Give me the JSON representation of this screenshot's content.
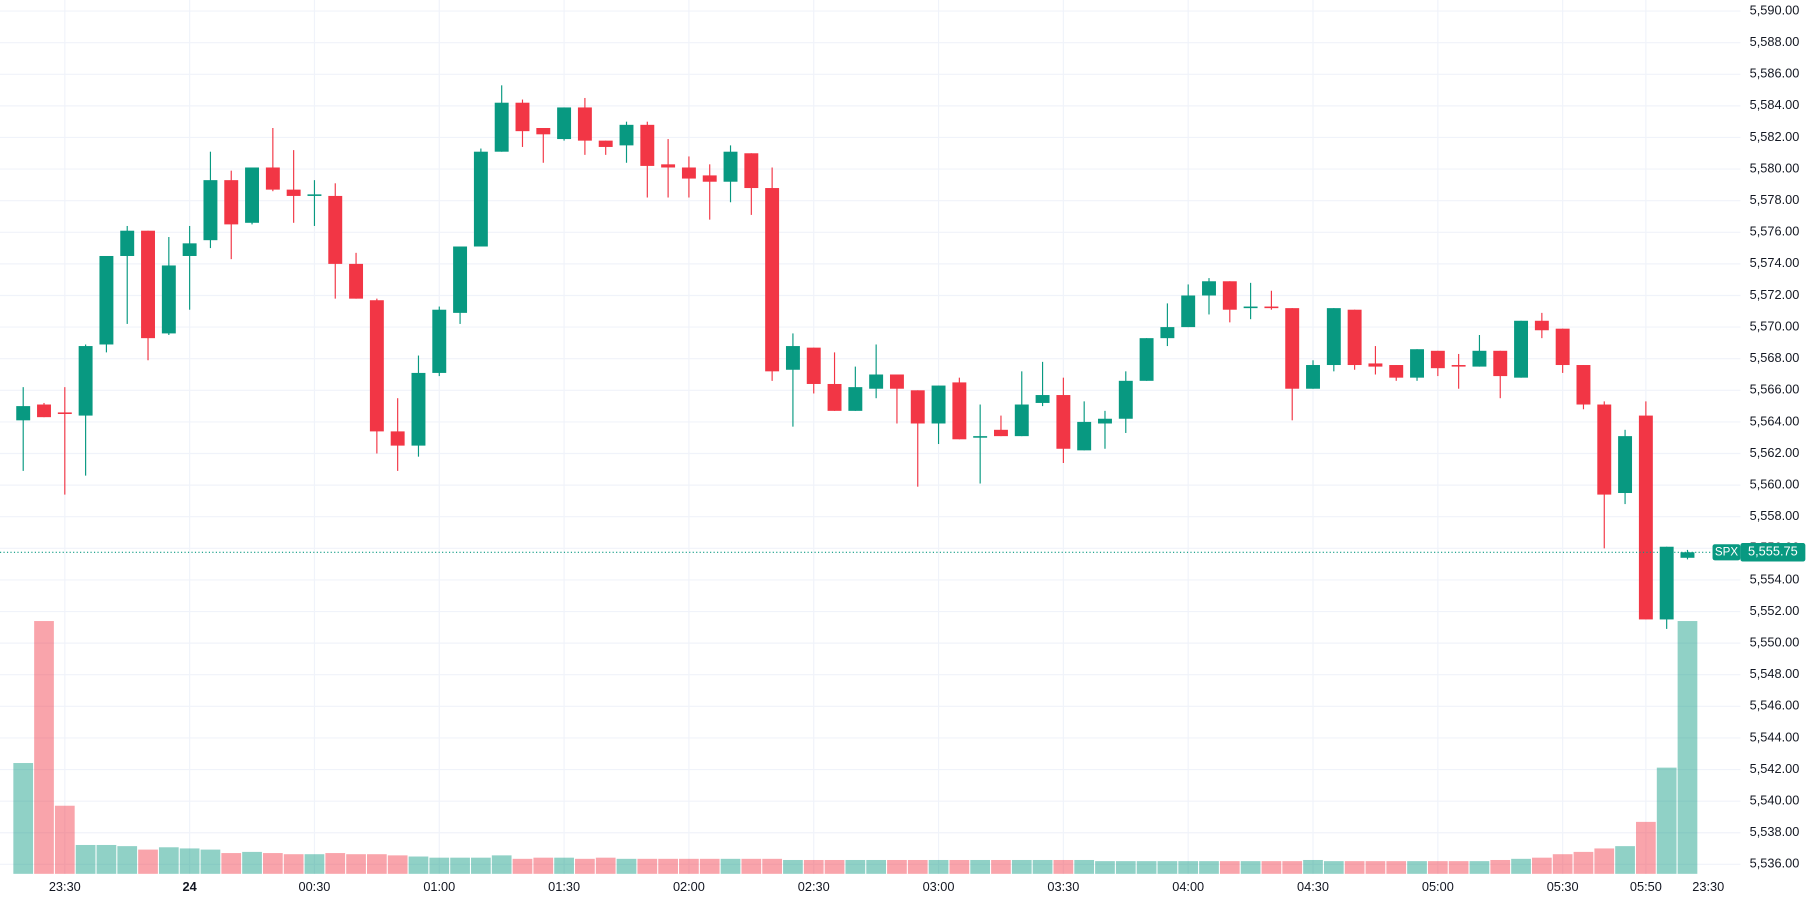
{
  "chart_data": {
    "type": "candlestick",
    "symbol": "SPX",
    "categories": [
      null,
      null,
      "23:30",
      null,
      null,
      null,
      null,
      null,
      "24",
      null,
      null,
      null,
      null,
      null,
      "00:30",
      null,
      null,
      null,
      null,
      null,
      "01:00",
      null,
      null,
      null,
      null,
      null,
      "01:30",
      null,
      null,
      null,
      null,
      null,
      "02:00",
      null,
      null,
      null,
      null,
      null,
      "02:30",
      null,
      null,
      null,
      null,
      null,
      "03:00",
      null,
      null,
      null,
      null,
      null,
      "03:30",
      null,
      null,
      null,
      null,
      null,
      "04:00",
      null,
      null,
      null,
      null,
      null,
      "04:30",
      null,
      null,
      null,
      null,
      null,
      "05:00",
      null,
      null,
      null,
      null,
      null,
      "05:30",
      null,
      null,
      null,
      "05:50",
      null,
      null
    ],
    "next_session_label": "23:30",
    "open": [
      5564.1,
      5565.1,
      5564.6,
      5564.4,
      5568.9,
      5574.5,
      5576.1,
      5569.6,
      5574.5,
      5575.5,
      5579.3,
      5576.6,
      5580.1,
      5578.7,
      5578.3,
      5578.3,
      5574.0,
      5571.7,
      5563.4,
      5562.5,
      5567.1,
      5570.9,
      5575.1,
      5581.1,
      5584.2,
      5582.6,
      5581.9,
      5583.9,
      5581.8,
      5581.5,
      5582.8,
      5580.3,
      5580.1,
      5579.6,
      5579.2,
      5581.0,
      5578.8,
      5567.3,
      5568.7,
      5566.4,
      5564.7,
      5566.1,
      5567.0,
      5566.0,
      5563.9,
      5566.5,
      5563.0,
      5563.5,
      5563.1,
      5565.2,
      5565.7,
      5562.2,
      5563.9,
      5564.2,
      5566.6,
      5569.3,
      5570.0,
      5572.0,
      5572.9,
      5571.2,
      5571.3,
      5571.2,
      5566.1,
      5567.6,
      5571.1,
      5567.7,
      5567.6,
      5566.8,
      5568.5,
      5567.6,
      5567.5,
      5568.5,
      5566.8,
      5570.4,
      5569.9,
      5567.6,
      5565.1,
      5559.5,
      5564.4,
      5551.5,
      5555.4
    ],
    "high": [
      5566.2,
      5565.2,
      5566.2,
      5568.9,
      5574.5,
      5576.4,
      5576.1,
      5575.7,
      5576.4,
      5581.1,
      5579.9,
      5580.1,
      5582.6,
      5581.2,
      5579.3,
      5579.1,
      5574.7,
      5571.8,
      5565.5,
      5568.2,
      5571.3,
      5575.1,
      5581.3,
      5585.3,
      5584.4,
      5582.6,
      5583.9,
      5584.5,
      5581.8,
      5583.0,
      5583.0,
      5581.9,
      5580.8,
      5580.3,
      5581.5,
      5581.0,
      5580.1,
      5569.6,
      5568.7,
      5568.4,
      5567.5,
      5568.9,
      5567.0,
      5566.0,
      5566.3,
      5566.8,
      5565.1,
      5564.4,
      5567.2,
      5567.8,
      5566.8,
      5565.3,
      5564.7,
      5567.2,
      5569.3,
      5571.5,
      5572.7,
      5573.1,
      5572.9,
      5572.8,
      5572.3,
      5571.2,
      5567.9,
      5571.2,
      5571.1,
      5568.8,
      5567.6,
      5568.6,
      5568.5,
      5568.3,
      5569.5,
      5568.5,
      5570.4,
      5570.9,
      5569.9,
      5567.6,
      5565.3,
      5563.5,
      5565.3,
      5556.1,
      5555.9
    ],
    "low": [
      5560.9,
      5564.3,
      5559.4,
      5560.6,
      5568.4,
      5570.2,
      5567.9,
      5569.5,
      5571.1,
      5575.0,
      5574.3,
      5576.5,
      5578.6,
      5576.6,
      5576.4,
      5571.8,
      5571.8,
      5562.0,
      5560.9,
      5561.8,
      5566.9,
      5570.2,
      5575.1,
      5581.1,
      5581.4,
      5580.4,
      5581.8,
      5580.9,
      5580.9,
      5580.4,
      5578.2,
      5578.2,
      5578.2,
      5576.8,
      5577.9,
      5577.1,
      5566.6,
      5563.7,
      5565.8,
      5564.7,
      5564.7,
      5565.5,
      5563.9,
      5559.9,
      5562.6,
      5562.9,
      5560.1,
      5563.1,
      5563.1,
      5565.0,
      5561.4,
      5562.2,
      5562.3,
      5563.3,
      5566.6,
      5568.8,
      5570.0,
      5570.8,
      5570.3,
      5570.5,
      5571.1,
      5564.1,
      5566.1,
      5567.2,
      5567.3,
      5567.0,
      5566.6,
      5566.6,
      5566.9,
      5566.1,
      5567.5,
      5565.5,
      5566.8,
      5569.3,
      5567.1,
      5564.8,
      5556.0,
      5558.8,
      5551.5,
      5550.9,
      5555.3
    ],
    "close": [
      5565.0,
      5564.3,
      5564.5,
      5568.8,
      5574.5,
      5576.1,
      5569.3,
      5573.9,
      5575.3,
      5579.3,
      5576.5,
      5580.1,
      5578.7,
      5578.3,
      5578.4,
      5574.0,
      5571.8,
      5563.4,
      5562.5,
      5567.1,
      5571.1,
      5575.1,
      5581.1,
      5584.2,
      5582.4,
      5582.2,
      5583.9,
      5581.8,
      5581.4,
      5582.8,
      5580.2,
      5580.1,
      5579.4,
      5579.2,
      5581.1,
      5578.8,
      5567.2,
      5568.8,
      5566.4,
      5564.7,
      5566.2,
      5567.0,
      5566.1,
      5563.9,
      5566.3,
      5562.9,
      5563.1,
      5563.1,
      5565.1,
      5565.7,
      5562.3,
      5564.0,
      5564.2,
      5566.6,
      5569.3,
      5570.0,
      5572.0,
      5572.9,
      5571.1,
      5571.3,
      5571.2,
      5566.1,
      5567.6,
      5571.2,
      5567.6,
      5567.5,
      5566.8,
      5568.6,
      5567.4,
      5567.5,
      5568.5,
      5566.9,
      5570.4,
      5569.8,
      5567.6,
      5565.1,
      5559.4,
      5563.1,
      5551.5,
      5556.1,
      5555.75
    ],
    "volume": [
      96,
      219,
      59,
      25,
      25,
      24,
      21,
      23,
      22,
      21,
      18,
      19,
      18,
      17,
      17,
      18,
      17,
      17,
      16,
      15,
      14,
      14,
      14,
      16,
      13,
      14,
      14,
      13,
      14,
      13,
      13,
      13,
      13,
      13,
      13,
      13,
      13,
      12,
      12,
      12,
      12,
      12,
      12,
      12,
      12,
      12,
      12,
      12,
      12,
      12,
      12,
      12,
      11,
      11,
      11,
      11,
      11,
      11,
      11,
      11,
      11,
      11,
      12,
      11,
      11,
      11,
      11,
      11,
      11,
      11,
      11,
      12,
      13,
      14,
      17,
      19,
      22,
      24,
      45,
      92,
      219
    ],
    "up_color": "#089981",
    "down_color": "#f23645",
    "last_price": {
      "value": 5555.75,
      "label": "5,555.75"
    },
    "ylim": [
      5535.4,
      5590.7
    ],
    "yticks": [
      {
        "value": 5536,
        "label": "5,536.00"
      },
      {
        "value": 5538,
        "label": "5,538.00"
      },
      {
        "value": 5540,
        "label": "5,540.00"
      },
      {
        "value": 5542,
        "label": "5,542.00"
      },
      {
        "value": 5544,
        "label": "5,544.00"
      },
      {
        "value": 5546,
        "label": "5,546.00"
      },
      {
        "value": 5548,
        "label": "5,548.00"
      },
      {
        "value": 5550,
        "label": "5,550.00"
      },
      {
        "value": 5552,
        "label": "5,552.00"
      },
      {
        "value": 5554,
        "label": "5,554.00"
      },
      {
        "value": 5556,
        "label": "5,556.00"
      },
      {
        "value": 5558,
        "label": "5,558.00"
      },
      {
        "value": 5560,
        "label": "5,560.00"
      },
      {
        "value": 5562,
        "label": "5,562.00"
      },
      {
        "value": 5564,
        "label": "5,564.00"
      },
      {
        "value": 5566,
        "label": "5,566.00"
      },
      {
        "value": 5568,
        "label": "5,568.00"
      },
      {
        "value": 5570,
        "label": "5,570.00"
      },
      {
        "value": 5572,
        "label": "5,572.00"
      },
      {
        "value": 5574,
        "label": "5,574.00"
      },
      {
        "value": 5576,
        "label": "5,576.00"
      },
      {
        "value": 5578,
        "label": "5,578.00"
      },
      {
        "value": 5580,
        "label": "5,580.00"
      },
      {
        "value": 5582,
        "label": "5,582.00"
      },
      {
        "value": 5584,
        "label": "5,584.00"
      },
      {
        "value": 5586,
        "label": "5,586.00"
      },
      {
        "value": 5588,
        "label": "5,588.00"
      },
      {
        "value": 5590,
        "label": "5,590.00"
      }
    ],
    "grid": true
  }
}
